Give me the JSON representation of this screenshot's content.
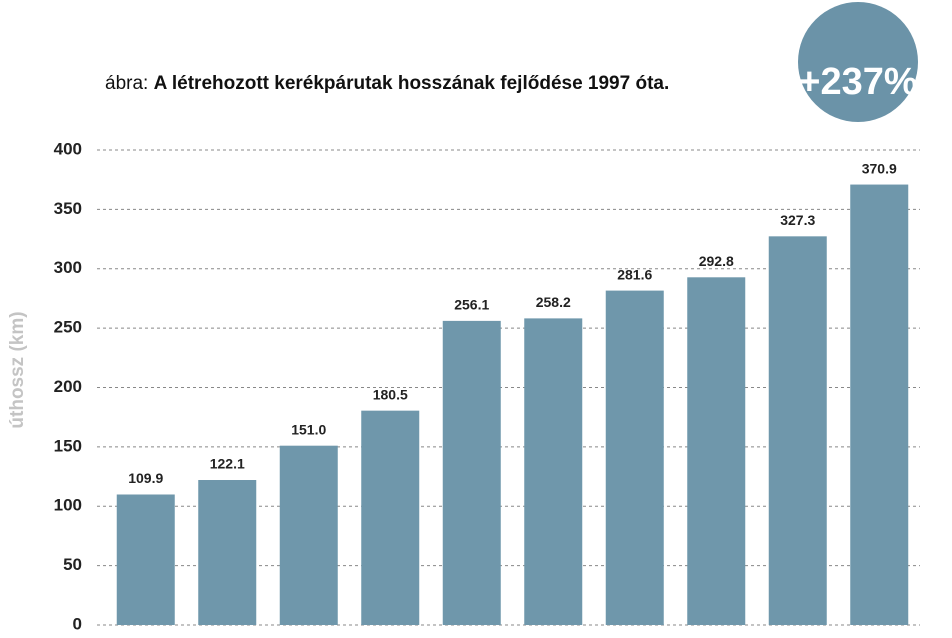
{
  "chart_data": {
    "type": "bar",
    "title_prefix": "ábra:",
    "title": "A létrehozott kerékpárutak hosszának fejlődése 1997 óta.",
    "annotation": "+237%",
    "y_label": "úthossz (km)",
    "categories": [
      null,
      null,
      null,
      null,
      null,
      null,
      null,
      null,
      null,
      null
    ],
    "values": [
      109.9,
      122.1,
      151.0,
      180.5,
      256.1,
      258.2,
      281.6,
      292.8,
      327.3,
      370.9
    ],
    "value_labels": [
      "109.9",
      "122.1",
      "151.0",
      "180.5",
      "256.1",
      "258.2",
      "281.6",
      "292.8",
      "327.3",
      "370.9"
    ],
    "color": "#6f97ab",
    "ylim": [
      0,
      400
    ],
    "yticks": [
      0,
      50,
      100,
      150,
      200,
      250,
      300,
      350,
      400
    ],
    "grid": true
  }
}
